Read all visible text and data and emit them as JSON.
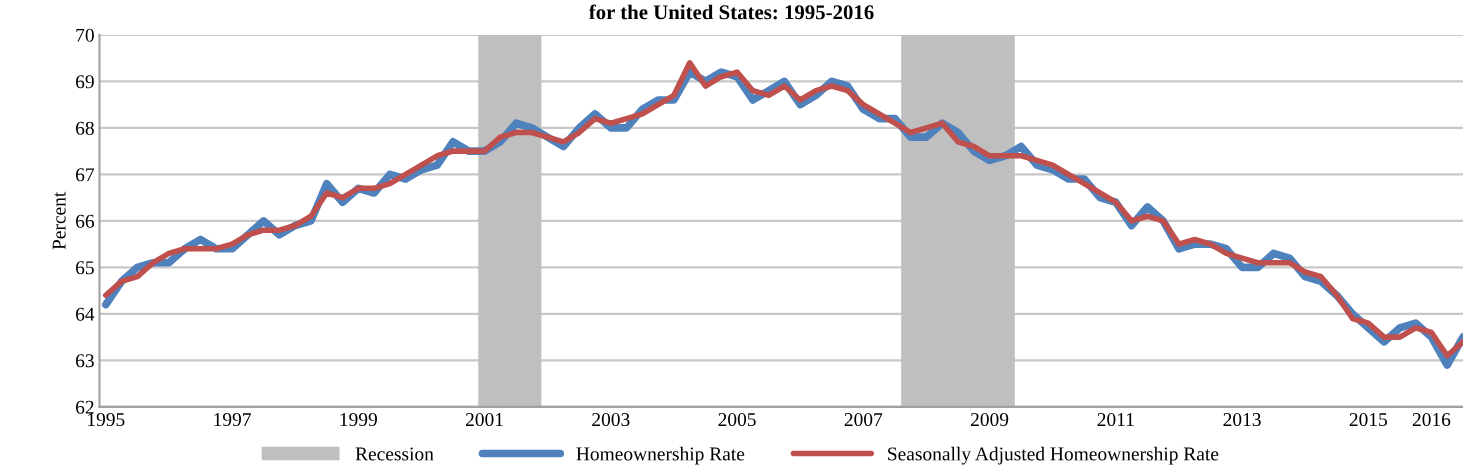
{
  "chart_data": {
    "type": "line",
    "title": "for the United States: 1995-2016",
    "ylabel": "Percent",
    "x": [
      1995,
      1995.25,
      1995.5,
      1995.75,
      1996,
      1996.25,
      1996.5,
      1996.75,
      1997,
      1997.25,
      1997.5,
      1997.75,
      1998,
      1998.25,
      1998.5,
      1998.75,
      1999,
      1999.25,
      1999.5,
      1999.75,
      2000,
      2000.25,
      2000.5,
      2000.75,
      2001,
      2001.25,
      2001.5,
      2001.75,
      2002,
      2002.25,
      2002.5,
      2002.75,
      2003,
      2003.25,
      2003.5,
      2003.75,
      2004,
      2004.25,
      2004.5,
      2004.75,
      2005,
      2005.25,
      2005.5,
      2005.75,
      2006,
      2006.25,
      2006.5,
      2006.75,
      2007,
      2007.25,
      2007.5,
      2007.75,
      2008,
      2008.25,
      2008.5,
      2008.75,
      2009,
      2009.25,
      2009.5,
      2009.75,
      2010,
      2010.25,
      2010.5,
      2010.75,
      2011,
      2011.25,
      2011.5,
      2011.75,
      2012,
      2012.25,
      2012.5,
      2012.75,
      2013,
      2013.25,
      2013.5,
      2013.75,
      2014,
      2014.25,
      2014.5,
      2014.75,
      2015,
      2015.25,
      2015.5,
      2015.75,
      2016,
      2016.25,
      2016.5
    ],
    "series": [
      {
        "name": "Homeownership Rate",
        "color": "#4f81bd",
        "values": [
          64.2,
          64.7,
          65.0,
          65.1,
          65.1,
          65.4,
          65.6,
          65.4,
          65.4,
          65.7,
          66.0,
          65.7,
          65.9,
          66.0,
          66.8,
          66.4,
          66.7,
          66.6,
          67.0,
          66.9,
          67.1,
          67.2,
          67.7,
          67.5,
          67.5,
          67.7,
          68.1,
          68.0,
          67.8,
          67.6,
          68.0,
          68.3,
          68.0,
          68.0,
          68.4,
          68.6,
          68.6,
          69.2,
          69.0,
          69.2,
          69.1,
          68.6,
          68.8,
          69.0,
          68.5,
          68.7,
          69.0,
          68.9,
          68.4,
          68.2,
          68.2,
          67.8,
          67.8,
          68.1,
          67.9,
          67.5,
          67.3,
          67.4,
          67.6,
          67.2,
          67.1,
          66.9,
          66.9,
          66.5,
          66.4,
          65.9,
          66.3,
          66.0,
          65.4,
          65.5,
          65.5,
          65.4,
          65.0,
          65.0,
          65.3,
          65.2,
          64.8,
          64.7,
          64.4,
          64.0,
          63.7,
          63.4,
          63.7,
          63.8,
          63.5,
          62.9,
          63.5
        ]
      },
      {
        "name": "Seasonally Adjusted Homeownership Rate",
        "color": "#c0504d",
        "values": [
          64.4,
          64.7,
          64.8,
          65.1,
          65.3,
          65.4,
          65.4,
          65.4,
          65.5,
          65.7,
          65.8,
          65.8,
          65.9,
          66.1,
          66.6,
          66.5,
          66.7,
          66.7,
          66.8,
          67.0,
          67.2,
          67.4,
          67.5,
          67.5,
          67.5,
          67.8,
          67.9,
          67.9,
          67.8,
          67.7,
          67.9,
          68.2,
          68.1,
          68.2,
          68.3,
          68.5,
          68.7,
          69.4,
          68.9,
          69.1,
          69.2,
          68.8,
          68.7,
          68.9,
          68.6,
          68.8,
          68.9,
          68.8,
          68.5,
          68.3,
          68.1,
          67.9,
          68.0,
          68.1,
          67.7,
          67.6,
          67.4,
          67.4,
          67.4,
          67.3,
          67.2,
          67.0,
          66.8,
          66.6,
          66.4,
          66.0,
          66.1,
          66.0,
          65.5,
          65.6,
          65.5,
          65.3,
          65.2,
          65.1,
          65.1,
          65.1,
          64.9,
          64.8,
          64.4,
          63.9,
          63.8,
          63.5,
          63.5,
          63.7,
          63.6,
          63.1,
          63.4
        ]
      }
    ],
    "bands": [
      {
        "axis": "x",
        "from": 2000.9,
        "to": 2001.9,
        "label": "Recession",
        "color": "#bfbfbf"
      },
      {
        "axis": "x",
        "from": 2007.6,
        "to": 2009.4,
        "color": "#bfbfbf"
      }
    ],
    "xlim": [
      1994.9,
      2016.5
    ],
    "xticks": [
      1995,
      1997,
      1999,
      2001,
      2003,
      2005,
      2007,
      2009,
      2011,
      2013,
      2015,
      2016
    ],
    "ylim": [
      62,
      70
    ],
    "yticks": [
      62,
      63,
      64,
      65,
      66,
      67,
      68,
      69,
      70
    ],
    "grid": "y",
    "legend": "bottom",
    "line_style": "solid",
    "marker": "none"
  }
}
